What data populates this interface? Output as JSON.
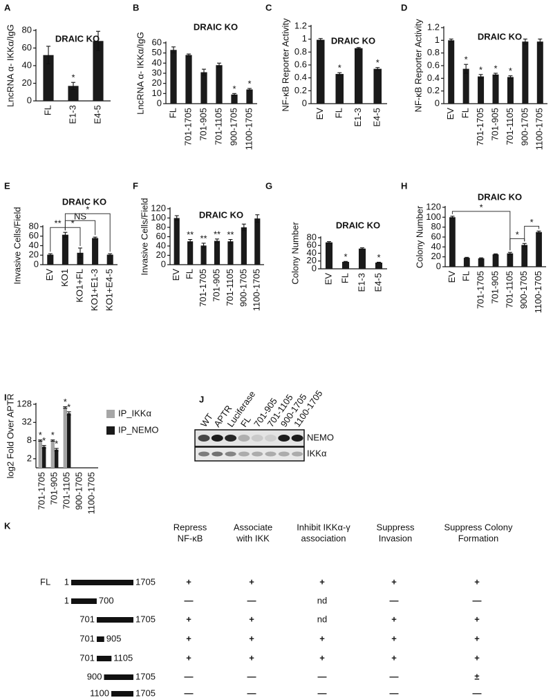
{
  "chart_data": [
    {
      "panel": "A",
      "type": "bar",
      "title": "DRAIC KO",
      "ylabel": "LncRNA α- IKKα/IgG",
      "categories": [
        "FL",
        "E1-3",
        "E4-5"
      ],
      "values": [
        52,
        17,
        68
      ],
      "errors": [
        10,
        4,
        11
      ],
      "sig": [
        null,
        "*",
        null
      ],
      "color": "#1a1a1a",
      "ylim": [
        0,
        80
      ],
      "yticks": [
        0,
        20,
        40,
        60,
        80
      ]
    },
    {
      "panel": "B",
      "type": "bar",
      "title": "DRAIC KO",
      "ylabel": "LncRNA α- IKKα/IgG",
      "categories": [
        "FL",
        "701-1705",
        "701-905",
        "701-1105",
        "900-1705",
        "1100-1705"
      ],
      "values": [
        53,
        48,
        31,
        38,
        9,
        14
      ],
      "errors": [
        3,
        1,
        3,
        2,
        1,
        1
      ],
      "sig": [
        null,
        null,
        null,
        null,
        "*",
        "*"
      ],
      "color": "#1a1a1a",
      "ylim": [
        0,
        60
      ],
      "yticks": [
        0,
        10,
        20,
        30,
        40,
        50,
        60
      ]
    },
    {
      "panel": "C",
      "type": "bar",
      "title": "DRAIC KO",
      "ylabel": "NF-κB Reporter Activity",
      "categories": [
        "EV",
        "FL",
        "E1-3",
        "E4-5"
      ],
      "values": [
        0.99,
        0.46,
        0.86,
        0.54
      ],
      "errors": [
        0.02,
        0.02,
        0.01,
        0.02
      ],
      "sig": [
        null,
        "*",
        null,
        "*"
      ],
      "color": "#1a1a1a",
      "ylim": [
        0,
        1.2
      ],
      "yticks": [
        0,
        0.2,
        0.4,
        0.6,
        0.8,
        1,
        1.2
      ]
    },
    {
      "panel": "D",
      "type": "bar",
      "title": "DRAIC KO",
      "ylabel": "NF-κB Reporter Activity",
      "categories": [
        "EV",
        "FL",
        "701-1705",
        "701-905",
        "701-1105",
        "900-1705",
        "1100-1705"
      ],
      "values": [
        1,
        0.55,
        0.43,
        0.46,
        0.42,
        0.98,
        0.98
      ],
      "errors": [
        0.02,
        0.07,
        0.03,
        0.02,
        0.02,
        0.04,
        0.04
      ],
      "sig": [
        null,
        "*",
        "*",
        "*",
        "*",
        null,
        null
      ],
      "color": "#1a1a1a",
      "ylim": [
        0,
        1.2
      ],
      "yticks": [
        0,
        0.2,
        0.4,
        0.6,
        0.8,
        1,
        1.2
      ]
    },
    {
      "panel": "E",
      "type": "bar",
      "title": "DRAIC KO",
      "ylabel": "Invasive Cells/Field",
      "categories": [
        "EV",
        "KO1",
        "KO1+FL",
        "KO1+E1-3",
        "KO1+E4-5"
      ],
      "values": [
        21,
        63,
        25,
        56,
        21
      ],
      "errors": [
        2,
        5,
        10,
        2,
        2
      ],
      "color": "#1a1a1a",
      "ylim": [
        0,
        80
      ],
      "yticks": [
        0,
        20,
        40,
        60,
        80
      ],
      "brackets": [
        {
          "from": "EV",
          "to": "KO1",
          "label": "**"
        },
        {
          "from": "KO1",
          "to": "KO1+FL",
          "label": "*"
        },
        {
          "from": "KO1",
          "to": "KO1+E1-3",
          "label": "NS"
        },
        {
          "from": "KO1",
          "to": "KO1+E4-5",
          "label": "*"
        }
      ]
    },
    {
      "panel": "F",
      "type": "bar",
      "title": "DRAIC KO",
      "ylabel": "Invasive Cells/Field",
      "categories": [
        "EV",
        "FL",
        "701-1705",
        "701-905",
        "701-1105",
        "900-1705",
        "1100-1705"
      ],
      "values": [
        100,
        50,
        41,
        51,
        50,
        80,
        99
      ],
      "errors": [
        5,
        4,
        5,
        4,
        4,
        7,
        8
      ],
      "sig": [
        null,
        "**",
        "**",
        "**",
        "**",
        null,
        null
      ],
      "color": "#1a1a1a",
      "ylim": [
        0,
        120
      ],
      "yticks": [
        0,
        20,
        40,
        60,
        80,
        100,
        120
      ]
    },
    {
      "panel": "G",
      "type": "bar",
      "title": "DRAIC KO",
      "ylabel": "Colony Number",
      "categories": [
        "EV",
        "FL",
        "E1-3",
        "E4-5"
      ],
      "values": [
        68,
        18,
        52,
        16
      ],
      "errors": [
        2,
        1,
        2,
        1
      ],
      "sig": [
        null,
        "*",
        null,
        "*"
      ],
      "color": "#1a1a1a",
      "ylim": [
        0,
        80
      ],
      "yticks": [
        0,
        20,
        40,
        60,
        80
      ]
    },
    {
      "panel": "H",
      "type": "bar",
      "title": "DRAIC KO",
      "ylabel": "Colony Number",
      "categories": [
        "EV",
        "FL",
        "701-1705",
        "701-905",
        "701-1105",
        "900-1705",
        "1100-1705"
      ],
      "values": [
        100,
        18,
        17,
        25,
        27,
        44,
        70
      ],
      "errors": [
        2,
        1,
        1,
        1,
        2,
        3,
        2
      ],
      "color": "#1a1a1a",
      "ylim": [
        0,
        120
      ],
      "yticks": [
        0,
        20,
        40,
        60,
        80,
        100,
        120
      ],
      "brackets": [
        {
          "from": "EV",
          "to": "701-1105",
          "label": "*"
        },
        {
          "from": "701-1105",
          "to": "900-1705",
          "label": "*"
        },
        {
          "from": "900-1705",
          "to": "1100-1705",
          "label": "*"
        }
      ]
    },
    {
      "panel": "I",
      "type": "bar",
      "ylabel": "log2 Fold Over APTR",
      "yscale": "log2",
      "categories": [
        "701-1705",
        "701-905",
        "701-1105",
        "900-1705",
        "1100-1705"
      ],
      "ylim": [
        1,
        128
      ],
      "yticks": [
        2,
        8,
        32,
        128
      ],
      "legend": "right",
      "series": [
        {
          "name": "IP_IKKα",
          "color": "#a6a6a6",
          "values": [
            8,
            8,
            100,
            null,
            null
          ],
          "errors": [
            0.4,
            0.4,
            6,
            null,
            null
          ],
          "sig": [
            "*",
            "*",
            "*",
            null,
            null
          ]
        },
        {
          "name": "IP_NEMO",
          "color": "#1a1a1a",
          "values": [
            5,
            4,
            64,
            null,
            null
          ],
          "errors": [
            0.5,
            0.4,
            8,
            null,
            null
          ],
          "sig": [
            "*",
            "*",
            "*",
            null,
            null
          ]
        }
      ]
    }
  ],
  "blot": {
    "panel": "J",
    "lanes": [
      "WT",
      "APTR",
      "Luciferase",
      "FL",
      "701-905",
      "701-1105",
      "900-1705",
      "1100-1705"
    ],
    "rows": [
      "NEMO",
      "IKKα"
    ]
  },
  "table": {
    "panel": "K",
    "headers": [
      [
        "Repress",
        "NF-κB"
      ],
      [
        "Associate",
        "with IKK"
      ],
      [
        "Inhibit IKKα-γ",
        "association"
      ],
      [
        "Suppress",
        "Invasion"
      ],
      [
        "Suppress Colony",
        "Formation"
      ]
    ],
    "rows": [
      {
        "name": "FL",
        "start": 1,
        "end": 1705,
        "cells": [
          "+",
          "+",
          "+",
          "+",
          "+"
        ]
      },
      {
        "start": 1,
        "end": 700,
        "cells": [
          "—",
          "—",
          "nd",
          "—",
          "—"
        ]
      },
      {
        "start": 701,
        "end": 1705,
        "cells": [
          "+",
          "+",
          "nd",
          "+",
          "+"
        ]
      },
      {
        "start": 701,
        "end": 905,
        "cells": [
          "+",
          "+",
          "+",
          "+",
          "+"
        ]
      },
      {
        "start": 701,
        "end": 1105,
        "cells": [
          "+",
          "+",
          "+",
          "+",
          "+"
        ]
      },
      {
        "start": 900,
        "end": 1705,
        "cells": [
          "—",
          "—",
          "—",
          "—",
          "±"
        ]
      },
      {
        "start": 1100,
        "end": 1705,
        "cells": [
          "—",
          "—",
          "—",
          "—",
          "—"
        ]
      }
    ]
  }
}
